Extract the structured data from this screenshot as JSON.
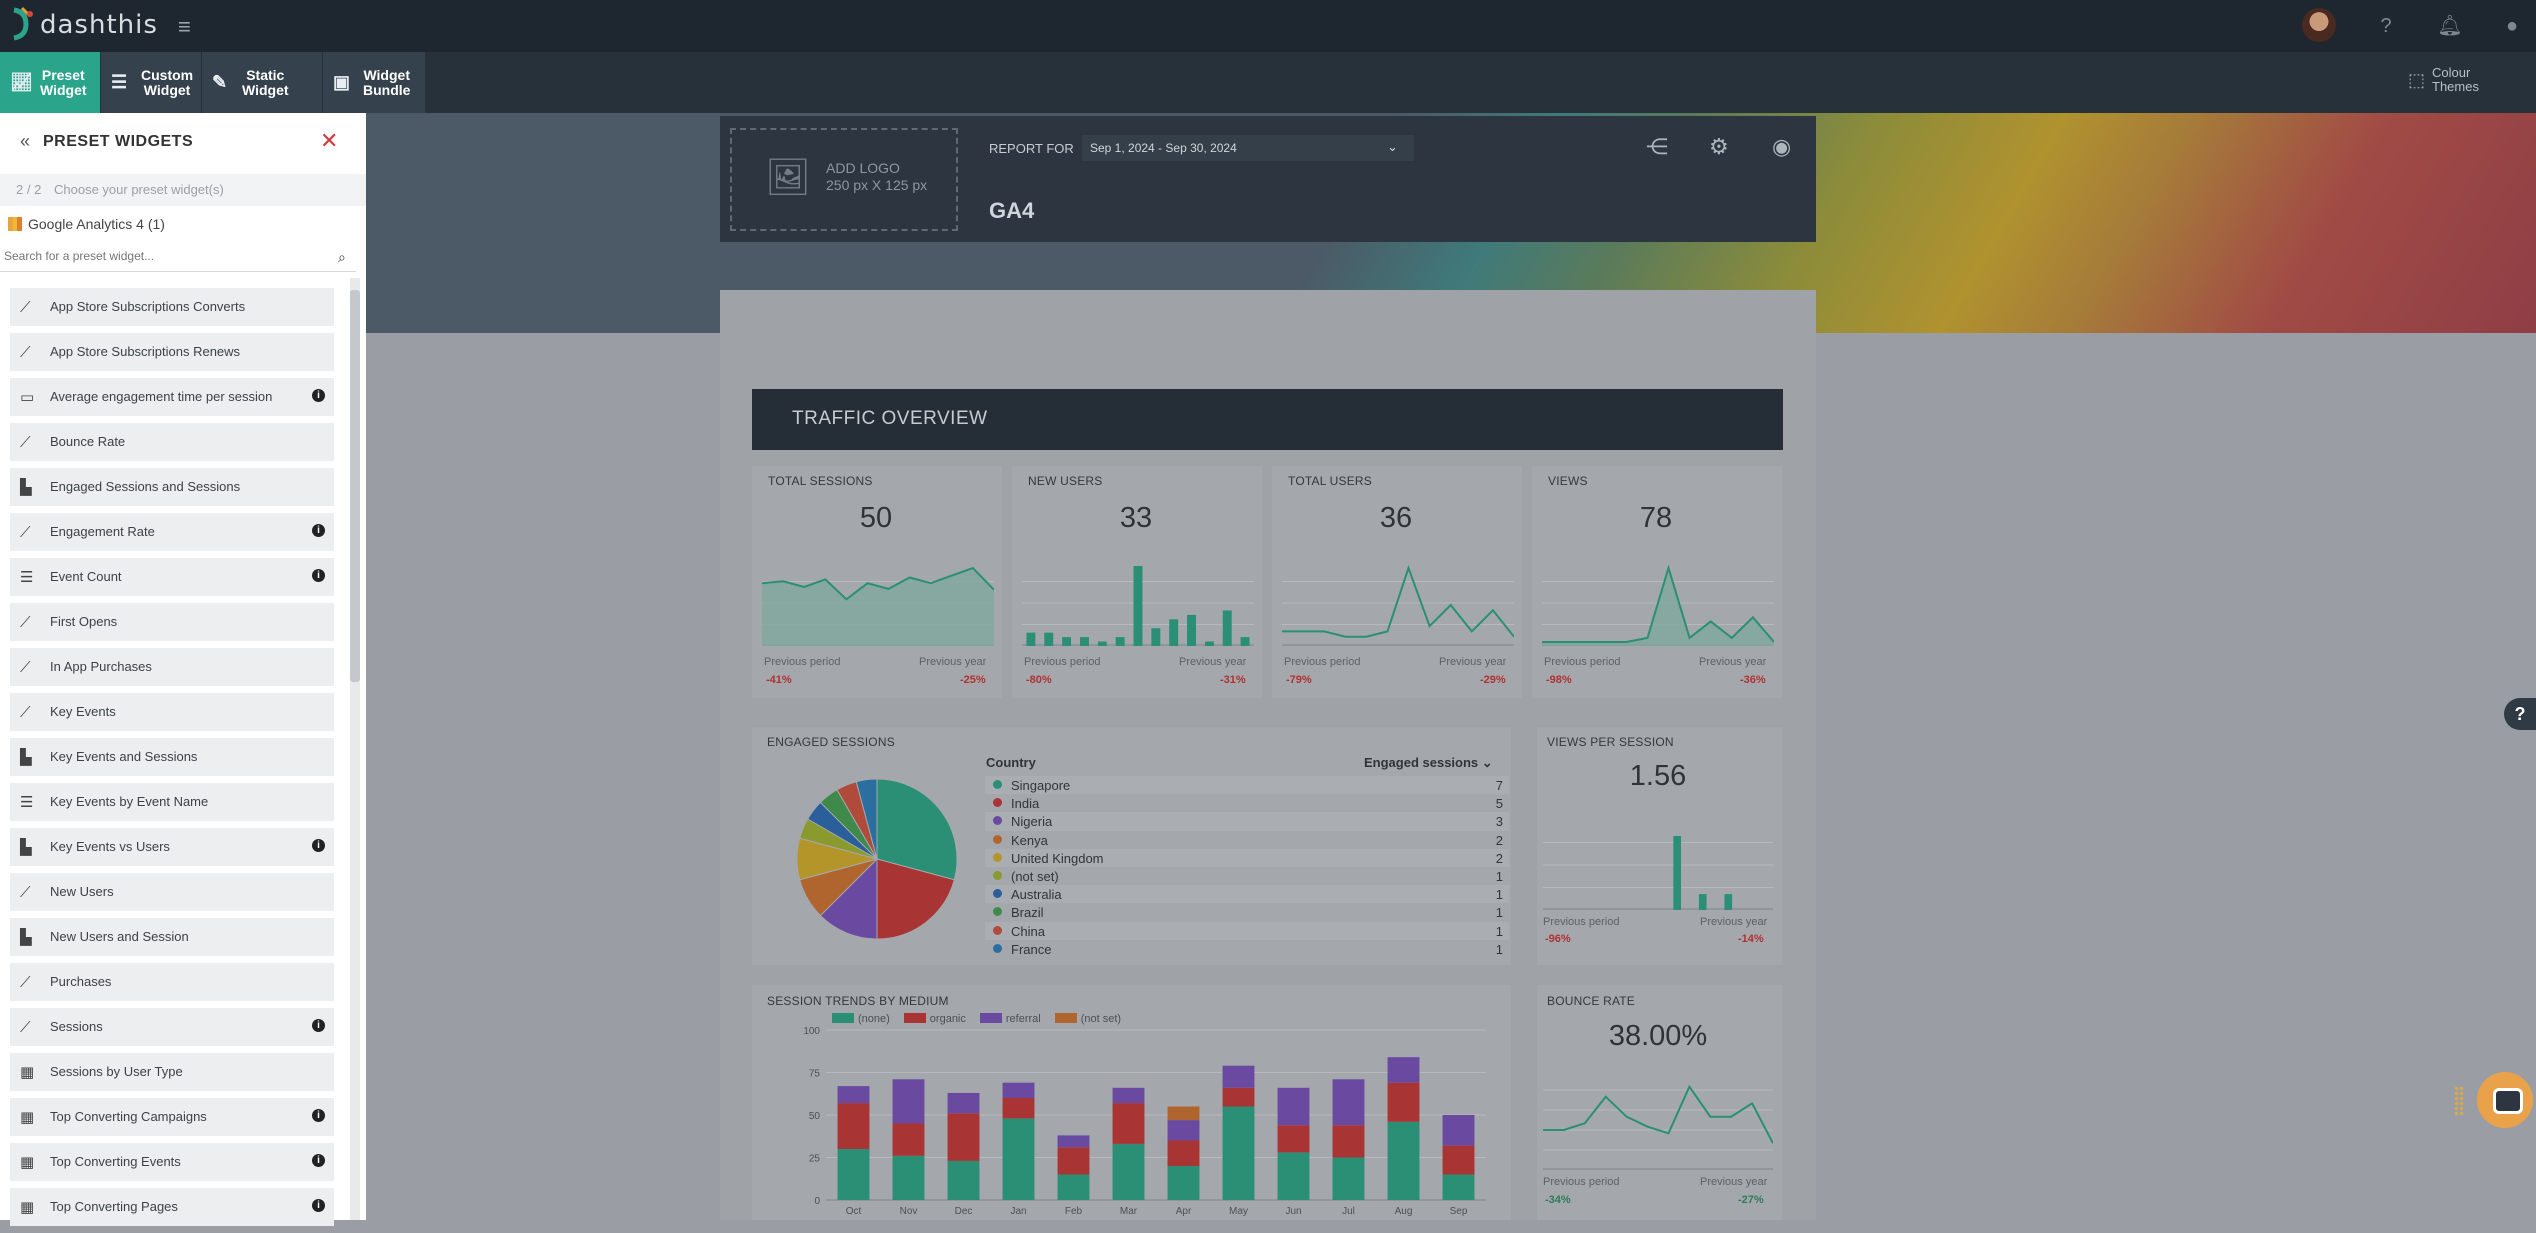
{
  "app": {
    "brand": "dashthis"
  },
  "tabs": [
    {
      "icon": "chart-icon",
      "line1": "Preset",
      "line2": "Widget"
    },
    {
      "icon": "sliders-icon",
      "line1": "Custom",
      "line2": "Widget"
    },
    {
      "icon": "edit-icon",
      "line1": "Static",
      "line2": "Widget"
    },
    {
      "icon": "bundle-icon",
      "line1": "Widget",
      "line2": "Bundle"
    }
  ],
  "colour_themes": {
    "line1": "Colour",
    "line2": "Themes"
  },
  "sidebar": {
    "title": "PRESET WIDGETS",
    "count": "2 / 2",
    "choose": "Choose your preset widget(s)",
    "source": "Google Analytics 4 (1)",
    "search_placeholder": "Search for a preset widget...",
    "items": [
      {
        "label": "App Store Subscriptions Converts",
        "icon": "line-chart-icon",
        "info": false
      },
      {
        "label": "App Store Subscriptions Renews",
        "icon": "line-chart-icon",
        "info": false
      },
      {
        "label": "Average engagement time per session",
        "icon": "number-icon",
        "info": true
      },
      {
        "label": "Bounce Rate",
        "icon": "line-chart-icon",
        "info": false
      },
      {
        "label": "Engaged Sessions and Sessions",
        "icon": "bar-chart-icon",
        "info": false
      },
      {
        "label": "Engagement Rate",
        "icon": "line-chart-icon",
        "info": true
      },
      {
        "label": "Event Count",
        "icon": "list-icon",
        "info": true
      },
      {
        "label": "First Opens",
        "icon": "line-chart-icon",
        "info": false
      },
      {
        "label": "In App Purchases",
        "icon": "line-chart-icon",
        "info": false
      },
      {
        "label": "Key Events",
        "icon": "line-chart-icon",
        "info": false
      },
      {
        "label": "Key Events and Sessions",
        "icon": "bar-chart-icon",
        "info": false
      },
      {
        "label": "Key Events by Event Name",
        "icon": "list-icon",
        "info": false
      },
      {
        "label": "Key Events vs Users",
        "icon": "bar-chart-icon",
        "info": true
      },
      {
        "label": "New Users",
        "icon": "line-chart-icon",
        "info": false
      },
      {
        "label": "New Users and Session",
        "icon": "bar-chart-icon",
        "info": false
      },
      {
        "label": "Purchases",
        "icon": "line-chart-icon",
        "info": false
      },
      {
        "label": "Sessions",
        "icon": "line-chart-icon",
        "info": true
      },
      {
        "label": "Sessions by User Type",
        "icon": "table-icon",
        "info": false
      },
      {
        "label": "Top Converting Campaigns",
        "icon": "table-icon",
        "info": true
      },
      {
        "label": "Top Converting Events",
        "icon": "table-icon",
        "info": true
      },
      {
        "label": "Top Converting Pages",
        "icon": "table-icon",
        "info": true
      }
    ]
  },
  "report": {
    "add_logo": "ADD LOGO",
    "logo_size": "250 px X 125 px",
    "report_for": "REPORT FOR",
    "date_range": "Sep 1, 2024 - Sep 30, 2024",
    "title": "GA4",
    "section": "TRAFFIC OVERVIEW"
  },
  "kpis": [
    {
      "title": "TOTAL SESSIONS",
      "value": "50",
      "chart": "area",
      "prev_label": "Previous period",
      "prev": "-41%",
      "year_label": "Previous year",
      "year": "-25%",
      "series": [
        62,
        64,
        58,
        66,
        45,
        62,
        56,
        68,
        62,
        70,
        78,
        55
      ]
    },
    {
      "title": "NEW USERS",
      "value": "33",
      "chart": "bar",
      "prev_label": "Previous period",
      "prev": "-80%",
      "year_label": "Previous year",
      "year": "-31%",
      "series": [
        3,
        3,
        2,
        2,
        1,
        2,
        18,
        4,
        6,
        7,
        1,
        8,
        2
      ]
    },
    {
      "title": "TOTAL USERS",
      "value": "36",
      "chart": "line",
      "prev_label": "Previous period",
      "prev": "-79%",
      "year_label": "Previous year",
      "year": "-29%",
      "series": [
        2,
        2,
        2,
        1,
        1,
        2,
        14,
        3,
        7,
        2,
        6,
        1
      ]
    },
    {
      "title": "VIEWS",
      "value": "78",
      "chart": "area",
      "prev_label": "Previous period",
      "prev": "-98%",
      "year_label": "Previous year",
      "year": "-36%",
      "series": [
        0,
        0,
        0,
        0,
        0,
        1,
        18,
        1,
        5,
        1,
        6,
        0
      ]
    }
  ],
  "engaged": {
    "title": "ENGAGED SESSIONS",
    "col_country": "Country",
    "col_metric": "Engaged sessions",
    "rows": [
      {
        "name": "Singapore",
        "value": "7",
        "color": "#2a8f74"
      },
      {
        "name": "India",
        "value": "5",
        "color": "#a83434"
      },
      {
        "name": "Nigeria",
        "value": "3",
        "color": "#6a4aa0"
      },
      {
        "name": "Kenya",
        "value": "2",
        "color": "#b0652e"
      },
      {
        "name": "United Kingdom",
        "value": "2",
        "color": "#b4952a"
      },
      {
        "name": "(not set)",
        "value": "1",
        "color": "#8a9a2e"
      },
      {
        "name": "Australia",
        "value": "1",
        "color": "#2a5f9a"
      },
      {
        "name": "Brazil",
        "value": "1",
        "color": "#3f8a4a"
      },
      {
        "name": "China",
        "value": "1",
        "color": "#b04a3a"
      },
      {
        "name": "France",
        "value": "1",
        "color": "#2a6fa0"
      }
    ]
  },
  "views_per_session": {
    "title": "VIEWS PER SESSION",
    "value": "1.56",
    "prev_label": "Previous period",
    "prev": "-96%",
    "year_label": "Previous year",
    "year": "-14%",
    "series": [
      0,
      0,
      0,
      0,
      0,
      0,
      0,
      0,
      0,
      0,
      14,
      0,
      3,
      0,
      3,
      0,
      0,
      0
    ]
  },
  "bounce": {
    "title": "BOUNCE RATE",
    "value": "38.00%",
    "prev_label": "Previous period",
    "prev": "-34%",
    "year_label": "Previous year",
    "year": "-27%",
    "series": [
      42,
      42,
      44,
      52,
      46,
      43,
      41,
      55,
      46,
      46,
      50,
      38
    ]
  },
  "chart_data": {
    "type": "bar",
    "title": "SESSION TRENDS BY MEDIUM",
    "stacked": true,
    "categories": [
      "Oct",
      "Nov",
      "Dec",
      "Jan",
      "Feb",
      "Mar",
      "Apr",
      "May",
      "Jun",
      "Jul",
      "Aug",
      "Sep"
    ],
    "ylim": [
      0,
      100
    ],
    "yticks": [
      0,
      25,
      50,
      75,
      100
    ],
    "series": [
      {
        "name": "(none)",
        "color": "#2a8f74",
        "values": [
          30,
          26,
          23,
          48,
          15,
          33,
          20,
          55,
          28,
          25,
          46,
          15
        ]
      },
      {
        "name": "organic",
        "color": "#a83434",
        "values": [
          27,
          19,
          28,
          12,
          16,
          24,
          15,
          11,
          16,
          19,
          23,
          17
        ]
      },
      {
        "name": "referral",
        "color": "#6a4aa0",
        "values": [
          10,
          26,
          12,
          9,
          7,
          9,
          12,
          13,
          22,
          27,
          15,
          18
        ]
      },
      {
        "name": "(not set)",
        "color": "#b0652e",
        "values": [
          0,
          0,
          0,
          0,
          0,
          0,
          8,
          0,
          0,
          0,
          0,
          0
        ]
      }
    ]
  }
}
